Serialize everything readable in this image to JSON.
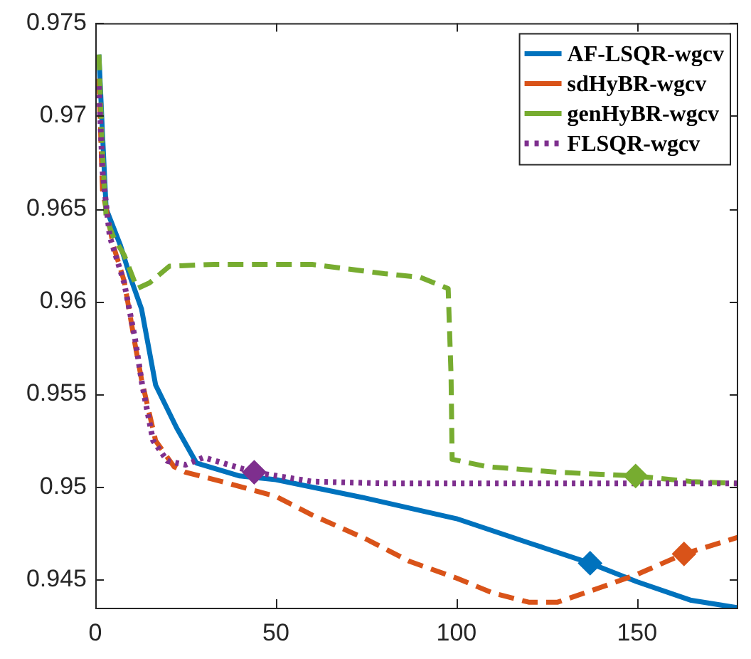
{
  "chart_data": {
    "type": "line",
    "legend": "top right",
    "marker": "none",
    "grid": false,
    "xlim": [
      0,
      178
    ],
    "xticks": [
      0,
      50,
      100,
      150
    ],
    "ylim": [
      0.9435,
      0.975
    ],
    "yticks": [
      0.945,
      0.95,
      0.955,
      0.96,
      0.965,
      0.97,
      0.975
    ],
    "series": [
      {
        "name": "AF-LSQR-wgcv",
        "color": "#0072bd",
        "line_style": "solid",
        "x": [
          1,
          2,
          3,
          7,
          9.7,
          12.8,
          16.7,
          22.5,
          28,
          40,
          50,
          75,
          100,
          120,
          137,
          150,
          165,
          178
        ],
        "values": [
          0.9733,
          0.969,
          0.965,
          0.963,
          0.9613,
          0.9596,
          0.9555,
          0.9532,
          0.9513,
          0.9506,
          0.9504,
          0.9494,
          0.9483,
          0.947,
          0.9459,
          0.9449,
          0.9439,
          0.9435
        ]
      },
      {
        "name": "sdHyBR-wgcv",
        "color": "#d95319",
        "line_style": "dashed",
        "x": [
          1,
          2,
          5,
          8,
          11,
          12.8,
          16.7,
          21.8,
          25,
          35,
          50,
          60,
          75,
          87,
          100,
          110,
          120,
          128,
          140,
          150,
          163,
          178
        ],
        "values": [
          0.972,
          0.966,
          0.963,
          0.9611,
          0.9577,
          0.9558,
          0.9525,
          0.9511,
          0.9508,
          0.9503,
          0.9495,
          0.9485,
          0.9472,
          0.946,
          0.9451,
          0.9443,
          0.9438,
          0.9438,
          0.9446,
          0.9453,
          0.9464,
          0.9473
        ]
      },
      {
        "name": "genHyBR-wgcv",
        "color": "#77ac30",
        "line_style": "dashed",
        "x": [
          1,
          2,
          3,
          5,
          8,
          11.6,
          15,
          20.5,
          33,
          60,
          80,
          90,
          97.7,
          98.5,
          98.8,
          108.5,
          128,
          149.6,
          165,
          178
        ],
        "values": [
          0.9733,
          0.968,
          0.9645,
          0.9635,
          0.9625,
          0.9607,
          0.961,
          0.9619,
          0.962,
          0.962,
          0.9615,
          0.9613,
          0.9607,
          0.956,
          0.9515,
          0.9511,
          0.9508,
          0.9506,
          0.9503,
          0.9502
        ]
      },
      {
        "name": "FLSQR-wgcv",
        "color": "#7e2f8e",
        "line_style": "dotted",
        "x": [
          1,
          2,
          4,
          8,
          11,
          13,
          16,
          20,
          25,
          30,
          44,
          60,
          80,
          100,
          150,
          178
        ],
        "values": [
          0.9716,
          0.967,
          0.9635,
          0.961,
          0.958,
          0.9555,
          0.9525,
          0.9514,
          0.9512,
          0.9516,
          0.9508,
          0.9503,
          0.9502,
          0.9502,
          0.9502,
          0.9502
        ]
      },
      {
        "type": "scatter",
        "marker": "diamond",
        "color": "#0072bd",
        "x": [
          137
        ],
        "values": [
          0.9459
        ]
      },
      {
        "type": "scatter",
        "marker": "diamond",
        "color": "#d95319",
        "x": [
          163
        ],
        "values": [
          0.9464
        ]
      },
      {
        "type": "scatter",
        "marker": "diamond",
        "color": "#77ac30",
        "x": [
          149.6
        ],
        "values": [
          0.9506
        ]
      },
      {
        "type": "scatter",
        "marker": "diamond",
        "color": "#7e2f8e",
        "x": [
          44
        ],
        "values": [
          0.9508
        ]
      }
    ]
  }
}
